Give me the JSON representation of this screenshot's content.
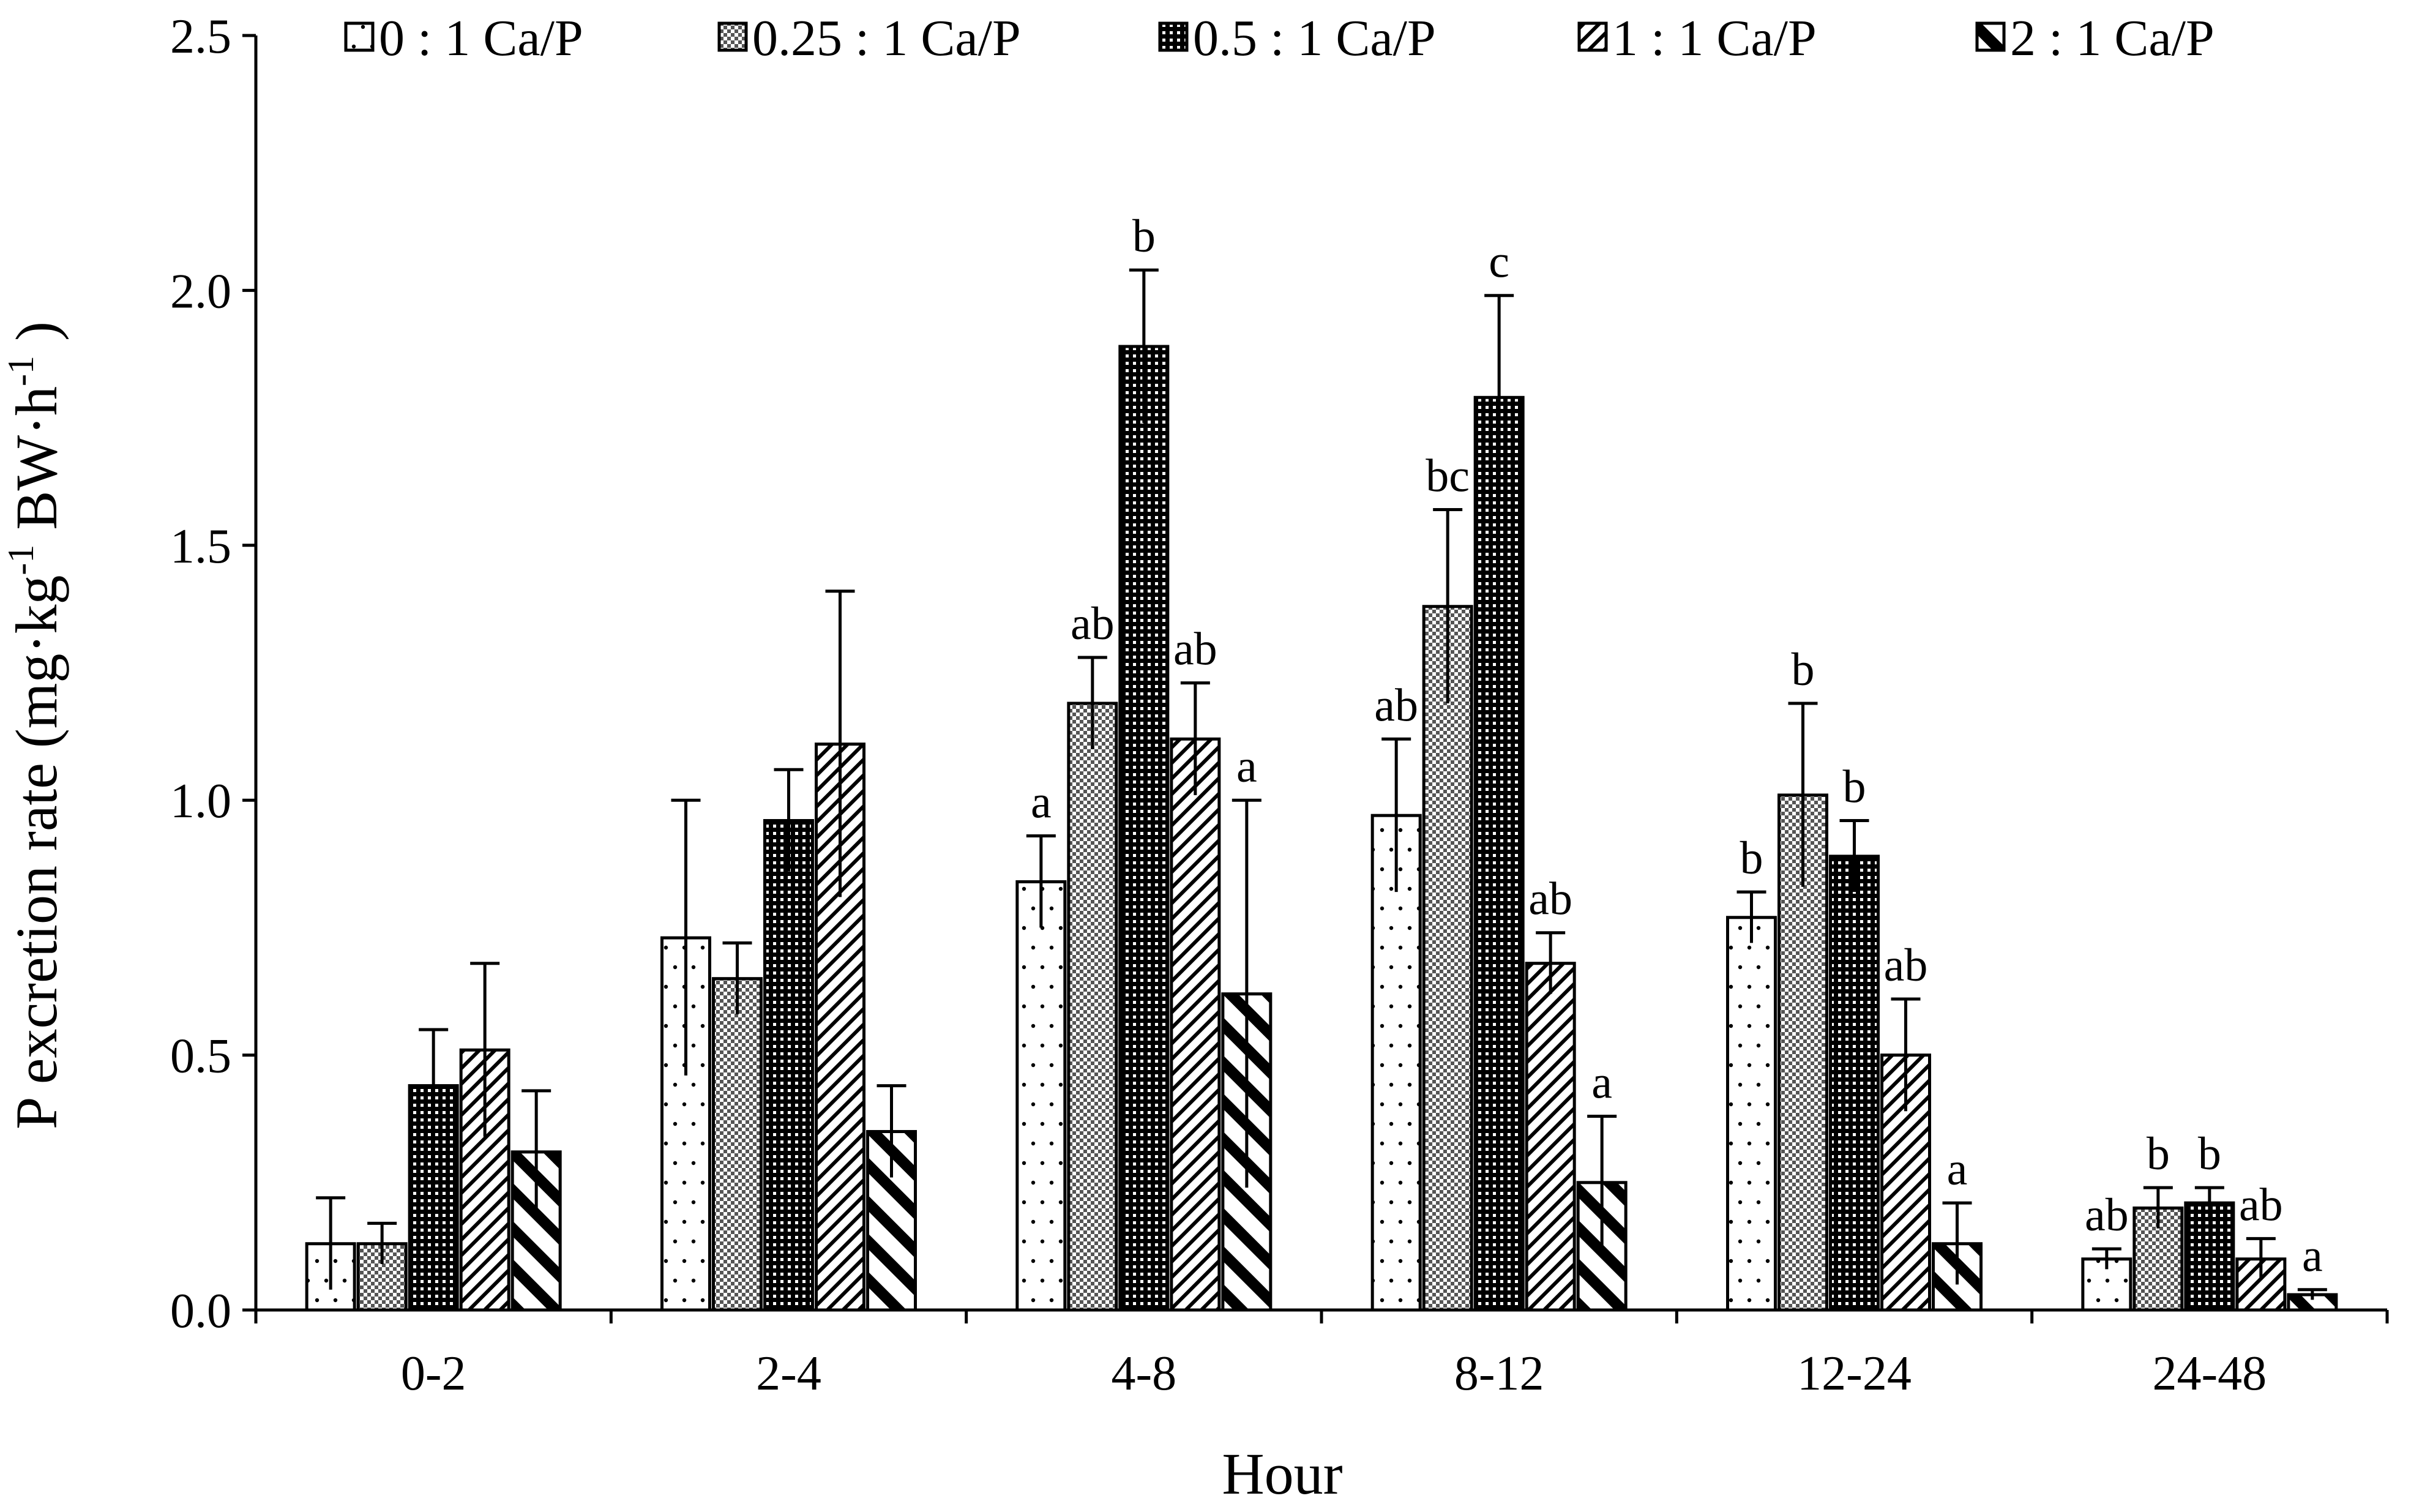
{
  "chart_data": {
    "type": "bar",
    "title": "",
    "xlabel": "Hour",
    "ylabel_parts": [
      "P excretion rate (mg·kg",
      "-1",
      " BW·h",
      "-1",
      " )"
    ],
    "ylim": [
      0,
      2.5
    ],
    "yticks": [
      "0.0",
      "0.5",
      "1.0",
      "1.5",
      "2.0",
      "2.5"
    ],
    "ytick_values": [
      0,
      0.5,
      1.0,
      1.5,
      2.0,
      2.5
    ],
    "categories": [
      "0-2",
      "2-4",
      "4-8",
      "8-12",
      "12-24",
      "24-48"
    ],
    "legend_position": "top",
    "series": [
      {
        "name": "0 : 1 Ca/P",
        "pattern": "dots",
        "values": [
          0.13,
          0.73,
          0.84,
          0.97,
          0.77,
          0.1
        ],
        "errors": [
          0.09,
          0.27,
          0.09,
          0.15,
          0.05,
          0.02
        ],
        "labels": [
          "",
          "",
          "a",
          "ab",
          "b",
          "ab"
        ]
      },
      {
        "name": "0.25 : 1 Ca/P",
        "pattern": "light-grid",
        "values": [
          0.13,
          0.65,
          1.19,
          1.38,
          1.01,
          0.2
        ],
        "errors": [
          0.04,
          0.07,
          0.09,
          0.19,
          0.18,
          0.04
        ],
        "labels": [
          "",
          "",
          "ab",
          "bc",
          "b",
          "b"
        ]
      },
      {
        "name": "0.5 : 1 Ca/P",
        "pattern": "dark-grid",
        "values": [
          0.44,
          0.96,
          1.89,
          1.79,
          0.89,
          0.21
        ],
        "errors": [
          0.11,
          0.1,
          0.15,
          0.2,
          0.07,
          0.03
        ],
        "labels": [
          "",
          "",
          "b",
          "c",
          "b",
          "b"
        ]
      },
      {
        "name": "1 : 1 Ca/P",
        "pattern": "diagonal",
        "values": [
          0.51,
          1.11,
          1.12,
          0.68,
          0.5,
          0.1
        ],
        "errors": [
          0.17,
          0.3,
          0.11,
          0.06,
          0.11,
          0.04
        ],
        "labels": [
          "",
          "",
          "ab",
          "ab",
          "ab",
          "ab"
        ]
      },
      {
        "name": "2 : 1 Ca/P",
        "pattern": "bold-diagonal",
        "values": [
          0.31,
          0.35,
          0.62,
          0.25,
          0.13,
          0.03
        ],
        "errors": [
          0.12,
          0.09,
          0.38,
          0.13,
          0.08,
          0.01
        ],
        "labels": [
          "",
          "",
          "a",
          "a",
          "a",
          "a"
        ]
      }
    ]
  }
}
